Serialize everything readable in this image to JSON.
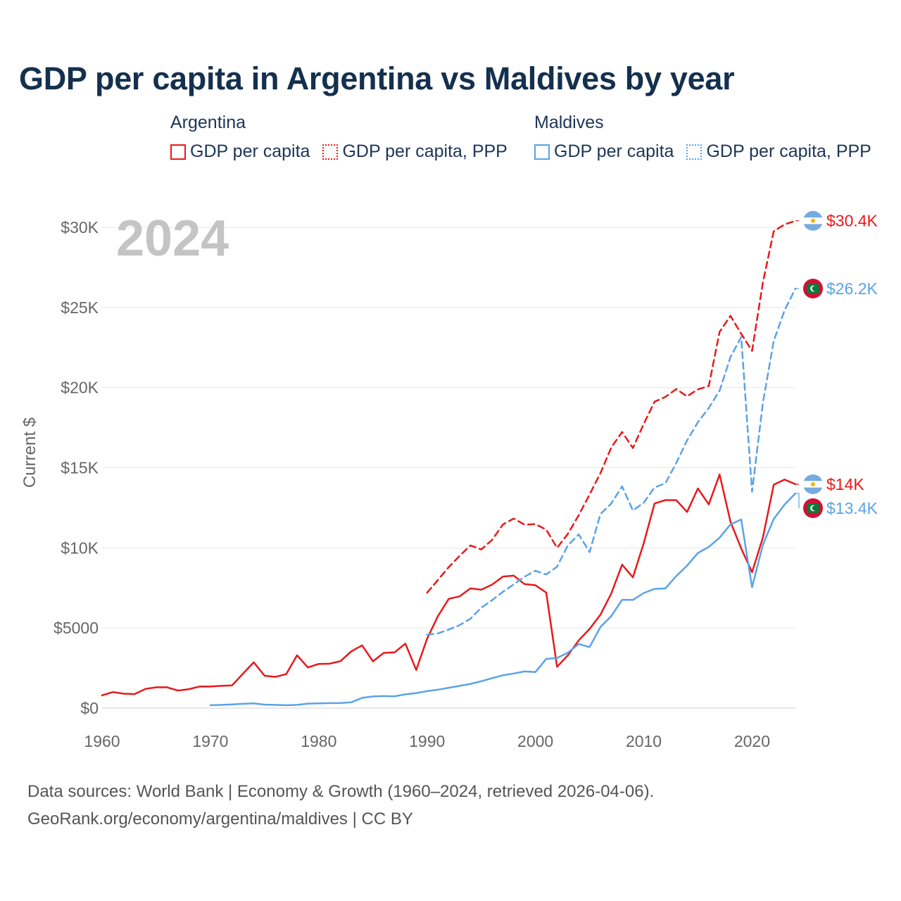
{
  "title": "GDP per capita in Argentina vs Maldives by year",
  "legend": {
    "groups": [
      {
        "country": "Argentina",
        "color": "#e8191b",
        "items": [
          {
            "label": "GDP per capita",
            "style": "solid"
          },
          {
            "label": "GDP per capita, PPP",
            "style": "dotted"
          }
        ]
      },
      {
        "country": "Maldives",
        "color": "#5aa3e6",
        "items": [
          {
            "label": "GDP per capita",
            "style": "solid"
          },
          {
            "label": "GDP per capita, PPP",
            "style": "dotted"
          }
        ]
      }
    ]
  },
  "chart_data": {
    "type": "line",
    "year_label": "2024",
    "ylabel": "Current $",
    "xlim": [
      1960,
      2024
    ],
    "ylim": [
      0,
      31000
    ],
    "x_ticks": [
      1960,
      1970,
      1980,
      1990,
      2000,
      2010,
      2020
    ],
    "y_ticks": [
      {
        "value": 0,
        "label": "$0"
      },
      {
        "value": 5000,
        "label": "$5000"
      },
      {
        "value": 10000,
        "label": "$10K"
      },
      {
        "value": 15000,
        "label": "$15K"
      },
      {
        "value": 20000,
        "label": "$20K"
      },
      {
        "value": 25000,
        "label": "$25K"
      },
      {
        "value": 30000,
        "label": "$30K"
      }
    ],
    "series": [
      {
        "name": "Argentina GDP per capita",
        "country": "Argentina",
        "color": "#e8191b",
        "dash": "solid",
        "end_label": "$14K",
        "start": 1960,
        "values": [
          800,
          1000,
          900,
          880,
          1200,
          1300,
          1300,
          1100,
          1180,
          1350,
          1350,
          1390,
          1420,
          2150,
          2860,
          2020,
          1950,
          2120,
          3300,
          2540,
          2760,
          2770,
          2930,
          3540,
          3920,
          2920,
          3450,
          3480,
          4030,
          2380,
          4330,
          5730,
          6820,
          6970,
          7470,
          7390,
          7710,
          8210,
          8270,
          7740,
          7670,
          7210,
          2580,
          3300,
          4230,
          4940,
          5830,
          7150,
          8950,
          8160,
          10290,
          12770,
          12980,
          12980,
          12240,
          13710,
          12710,
          14580,
          11640,
          9960,
          8480,
          10640,
          13940,
          14260,
          13970
        ]
      },
      {
        "name": "Argentina GDP per capita, PPP",
        "country": "Argentina",
        "color": "#e8191b",
        "dash": "dashed",
        "end_label": "$30.4K",
        "start": 1990,
        "values": [
          7200,
          8000,
          8800,
          9500,
          10150,
          9900,
          10500,
          11460,
          11830,
          11450,
          11480,
          11140,
          10000,
          10880,
          12040,
          13330,
          14660,
          16260,
          17230,
          16230,
          17730,
          19120,
          19420,
          19910,
          19460,
          19890,
          20100,
          23480,
          24480,
          23360,
          22290,
          26560,
          29760,
          30180,
          30410
        ]
      },
      {
        "name": "Maldives GDP per capita",
        "country": "Maldives",
        "color": "#5aa3e6",
        "dash": "solid",
        "end_label": "$13.4K",
        "start": 1970,
        "values": [
          180,
          200,
          230,
          270,
          300,
          220,
          200,
          180,
          200,
          280,
          300,
          310,
          320,
          360,
          640,
          730,
          750,
          740,
          860,
          940,
          1060,
          1150,
          1270,
          1390,
          1510,
          1680,
          1870,
          2050,
          2160,
          2290,
          2250,
          3070,
          3130,
          3460,
          4000,
          3810,
          5060,
          5740,
          6760,
          6750,
          7180,
          7440,
          7470,
          8240,
          8890,
          9680,
          10060,
          10640,
          11460,
          11770,
          7540,
          10190,
          11800,
          12700,
          13400
        ]
      },
      {
        "name": "Maldives GDP per capita, PPP",
        "country": "Maldives",
        "color": "#5aa3e6",
        "dash": "dashed",
        "end_label": "$26.2K",
        "start": 1990,
        "values": [
          4580,
          4660,
          4900,
          5180,
          5580,
          6270,
          6740,
          7260,
          7720,
          8200,
          8570,
          8340,
          8830,
          10160,
          10840,
          9740,
          12110,
          12770,
          13840,
          12330,
          12820,
          13770,
          14030,
          15300,
          16700,
          17840,
          18730,
          19810,
          21900,
          23160,
          13500,
          19050,
          22920,
          24820,
          26180
        ]
      }
    ]
  },
  "footer": {
    "line1": "Data sources: World Bank | Economy & Growth (1960–2024, retrieved 2026-04-06).",
    "line2": "GeoRank.org/economy/argentina/maldives | CC BY"
  }
}
